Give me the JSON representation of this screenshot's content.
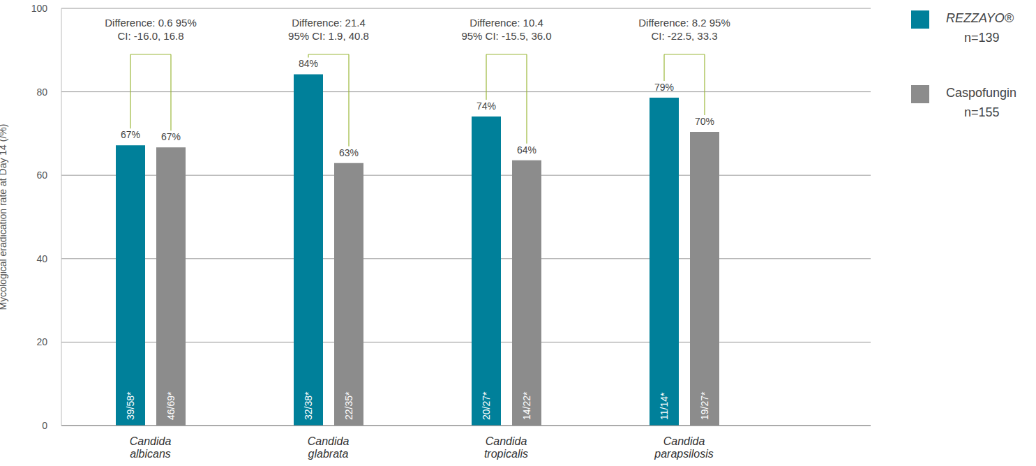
{
  "chart_data": {
    "type": "bar",
    "y_label": "Mycological eradication rate at Day 14 (/%)",
    "categories": [
      "Candida albicans",
      "Candida glabrata",
      "Candida tropicalis",
      "Candida parapsilosis"
    ],
    "series": [
      {
        "name": "REZZAYO®",
        "sample_size_label": "n=139",
        "color": "#00809a",
        "values": [
          67.2,
          84.2,
          74.1,
          78.6
        ],
        "value_labels": [
          "67%",
          "84%",
          "74%",
          "79%"
        ],
        "bar_labels": [
          "39/58*",
          "32/38*",
          "20/27*",
          "11/14*"
        ]
      },
      {
        "name": "Caspofungin",
        "sample_size_label": "n=155",
        "color": "#8c8c8c",
        "values": [
          66.7,
          62.9,
          63.6,
          70.4
        ],
        "value_labels": [
          "67%",
          "63%",
          "64%",
          "70%"
        ],
        "bar_labels": [
          "46/69*",
          "22/35*",
          "14/22*",
          "19/27*"
        ]
      }
    ],
    "annotations": [
      [
        "Difference: 0.6  95%",
        "CI: -16.0, 16.8"
      ],
      [
        "Difference: 21.4",
        "95% CI: 1.9, 40.8"
      ],
      [
        "Difference: 10.4",
        "95% CI: -15.5, 36.0"
      ],
      [
        "Difference: 8.2  95%",
        "CI: -22.5, 33.3"
      ]
    ],
    "ylim": [
      0,
      100
    ],
    "yticks": [
      0,
      20,
      40,
      60,
      80,
      100
    ],
    "grid": true,
    "data_labels": true,
    "legend": "right"
  }
}
